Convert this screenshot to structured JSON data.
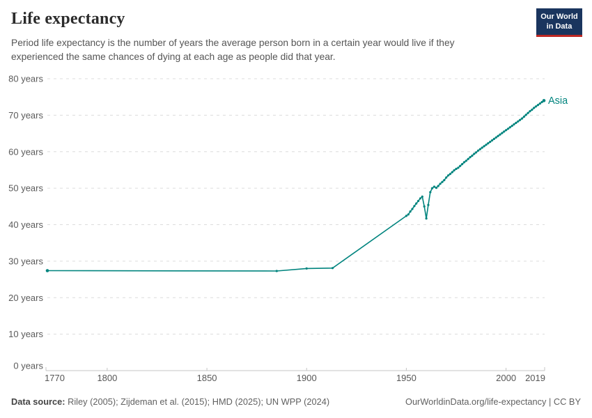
{
  "header": {
    "title": "Life expectancy",
    "subtitle": "Period life expectancy is the number of years the average person born in a certain year would live if they experienced the same chances of dying at each age as people did that year.",
    "logo": {
      "line1": "Our World",
      "line2": "in Data",
      "bg_color": "#1a355e",
      "accent_color": "#be2823"
    }
  },
  "footer": {
    "datasource_label": "Data source:",
    "datasource_rest": " Riley (2005); Zijdeman et al. (2015); HMD (2025); UN WPP (2024)",
    "link_text": "OurWorldinData.org/life-expectancy | CC BY"
  },
  "chart_data": {
    "type": "line",
    "title": "Life expectancy",
    "xlabel": "",
    "ylabel": "",
    "xlim": [
      1770,
      2019
    ],
    "ylim": [
      0,
      80
    ],
    "x_ticks": [
      1770,
      1800,
      1850,
      1900,
      1950,
      2000,
      2019
    ],
    "y_ticks": [
      0,
      10,
      20,
      30,
      40,
      50,
      60,
      70,
      80
    ],
    "y_tick_suffix": " years",
    "grid": "horizontal-dashed",
    "legend_position": "end-of-line-label",
    "colors": {
      "line": "#00847E",
      "grid": "#dcdcdc",
      "axis": "#c4c4c4",
      "tick_text": "#5b5b5b"
    },
    "series": [
      {
        "name": "Asia",
        "points": [
          [
            1770,
            27.4
          ],
          [
            1885,
            27.3
          ],
          [
            1900,
            28.0
          ],
          [
            1913,
            28.1
          ],
          [
            1950,
            42.4
          ],
          [
            1951,
            42.8
          ],
          [
            1952,
            43.6
          ],
          [
            1953,
            44.3
          ],
          [
            1954,
            45.1
          ],
          [
            1955,
            45.8
          ],
          [
            1956,
            46.5
          ],
          [
            1957,
            47.2
          ],
          [
            1958,
            47.7
          ],
          [
            1959,
            45.0
          ],
          [
            1960,
            41.7
          ],
          [
            1961,
            45.4
          ],
          [
            1962,
            48.9
          ],
          [
            1963,
            50.0
          ],
          [
            1964,
            50.4
          ],
          [
            1965,
            50.1
          ],
          [
            1966,
            50.6
          ],
          [
            1967,
            51.2
          ],
          [
            1968,
            51.7
          ],
          [
            1969,
            52.2
          ],
          [
            1970,
            52.9
          ],
          [
            1971,
            53.5
          ],
          [
            1972,
            53.9
          ],
          [
            1973,
            54.4
          ],
          [
            1974,
            54.9
          ],
          [
            1975,
            55.3
          ],
          [
            1976,
            55.6
          ],
          [
            1977,
            56.1
          ],
          [
            1978,
            56.6
          ],
          [
            1979,
            57.1
          ],
          [
            1980,
            57.5
          ],
          [
            1981,
            58.0
          ],
          [
            1982,
            58.5
          ],
          [
            1983,
            58.9
          ],
          [
            1984,
            59.4
          ],
          [
            1985,
            59.8
          ],
          [
            1986,
            60.3
          ],
          [
            1987,
            60.7
          ],
          [
            1988,
            61.1
          ],
          [
            1989,
            61.5
          ],
          [
            1990,
            61.9
          ],
          [
            1991,
            62.3
          ],
          [
            1992,
            62.7
          ],
          [
            1993,
            63.1
          ],
          [
            1994,
            63.5
          ],
          [
            1995,
            63.9
          ],
          [
            1996,
            64.3
          ],
          [
            1997,
            64.7
          ],
          [
            1998,
            65.1
          ],
          [
            1999,
            65.5
          ],
          [
            2000,
            65.9
          ],
          [
            2001,
            66.3
          ],
          [
            2002,
            66.7
          ],
          [
            2003,
            67.1
          ],
          [
            2004,
            67.5
          ],
          [
            2005,
            67.9
          ],
          [
            2006,
            68.3
          ],
          [
            2007,
            68.7
          ],
          [
            2008,
            69.1
          ],
          [
            2009,
            69.6
          ],
          [
            2010,
            70.1
          ],
          [
            2011,
            70.6
          ],
          [
            2012,
            71.1
          ],
          [
            2013,
            71.5
          ],
          [
            2014,
            72.0
          ],
          [
            2015,
            72.4
          ],
          [
            2016,
            72.8
          ],
          [
            2017,
            73.2
          ],
          [
            2018,
            73.6
          ],
          [
            2019,
            74.0
          ]
        ]
      }
    ]
  }
}
